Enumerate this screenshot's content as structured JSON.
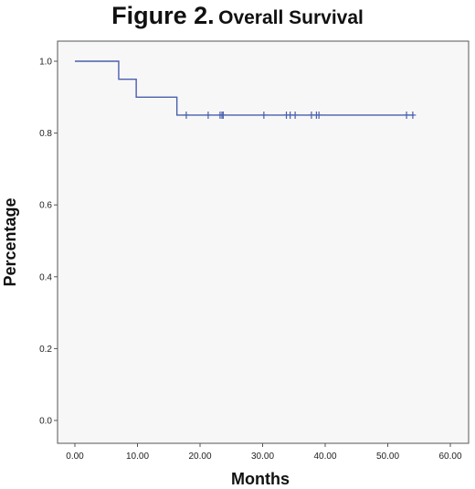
{
  "title": {
    "figure_label": "Figure 2.",
    "text": "Overall Survival"
  },
  "chart_data": {
    "type": "line",
    "subtype": "kaplan-meier-step",
    "title": "Figure 2. Overall Survival",
    "xlabel": "Months",
    "ylabel": "Percentage",
    "xlim": [
      0,
      60
    ],
    "ylim": [
      0,
      1.0
    ],
    "x_ticks": [
      "0.00",
      "10.00",
      "20.00",
      "30.00",
      "40.00",
      "50.00",
      "60.00"
    ],
    "y_ticks": [
      "0.0",
      "0.2",
      "0.4",
      "0.6",
      "0.8",
      "1.0"
    ],
    "grid": false,
    "legend": "none",
    "line_color": "#4a5fad",
    "plot_background": "#f7f7f7",
    "series": [
      {
        "steps": [
          {
            "x": 0.0,
            "y": 1.0
          },
          {
            "x": 7.0,
            "y": 0.95
          },
          {
            "x": 9.8,
            "y": 0.9
          },
          {
            "x": 16.3,
            "y": 0.85
          },
          {
            "x": 54.2,
            "y": 0.85
          }
        ],
        "censored": [
          17.8,
          21.3,
          23.2,
          23.5,
          23.7,
          30.2,
          33.8,
          34.4,
          35.2,
          37.8,
          38.6,
          39.0,
          53.0,
          54.0
        ],
        "censored_y": 0.85
      }
    ]
  }
}
